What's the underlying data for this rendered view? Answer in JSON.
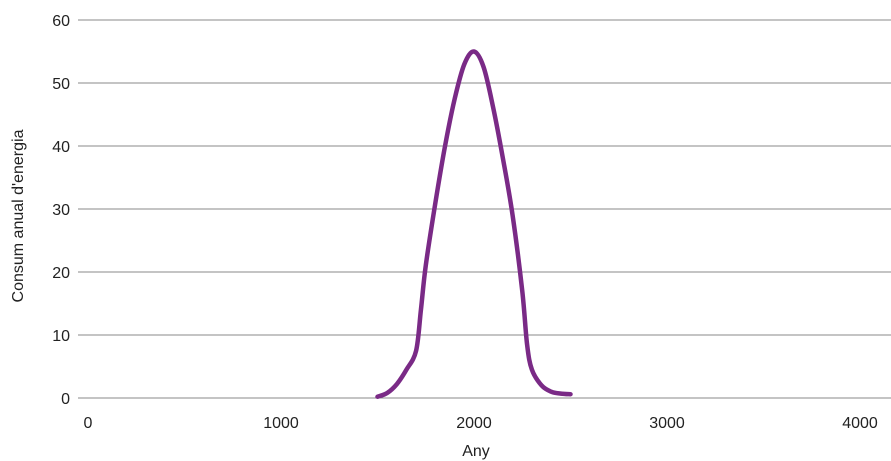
{
  "chart_data": {
    "type": "line",
    "xlabel": "Any",
    "ylabel": "Consum anual d'energia",
    "xlim": [
      0,
      4000
    ],
    "ylim": [
      0,
      60
    ],
    "xticks": [
      "0",
      "1000",
      "2000",
      "3000",
      "4000"
    ],
    "yticks": [
      "0",
      "10",
      "20",
      "30",
      "40",
      "50",
      "60"
    ],
    "grid": "horizontal",
    "series": [
      {
        "color": "#7a2a86",
        "x": [
          1500,
          1550,
          1600,
          1650,
          1700,
          1725,
          1750,
          1800,
          1850,
          1900,
          1950,
          2000,
          2050,
          2100,
          2150,
          2200,
          2250,
          2275,
          2300,
          2350,
          2400,
          2450,
          2500
        ],
        "y": [
          0.2,
          0.8,
          2.2,
          4.5,
          7.5,
          14.0,
          21.0,
          31.0,
          40.0,
          47.5,
          53.0,
          55.0,
          52.5,
          46.0,
          38.0,
          29.0,
          17.0,
          8.5,
          4.5,
          2.0,
          1.0,
          0.7,
          0.6
        ]
      }
    ]
  }
}
